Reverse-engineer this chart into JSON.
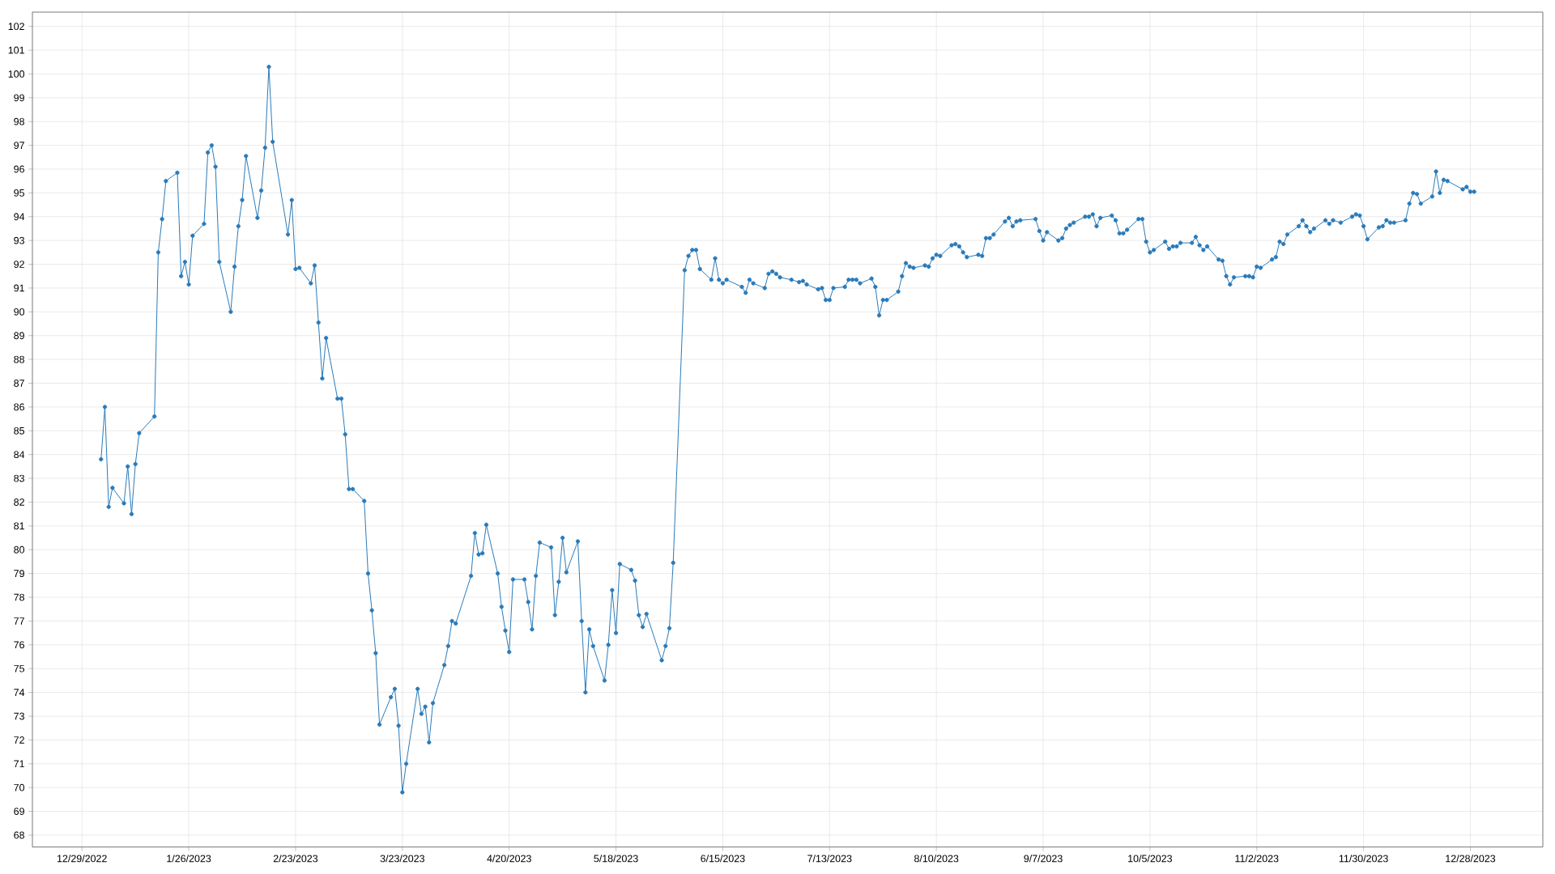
{
  "chart_data": {
    "type": "line",
    "marker": "circle",
    "grid": true,
    "xlim": [
      "2022-12-16",
      "2024-01-16"
    ],
    "ylim": [
      67.5,
      102.6
    ],
    "xticks": [
      {
        "value": "2022-12-29",
        "label": "12/29/2022"
      },
      {
        "value": "2023-01-26",
        "label": "1/26/2023"
      },
      {
        "value": "2023-02-23",
        "label": "2/23/2023"
      },
      {
        "value": "2023-03-23",
        "label": "3/23/2023"
      },
      {
        "value": "2023-04-20",
        "label": "4/20/2023"
      },
      {
        "value": "2023-05-18",
        "label": "5/18/2023"
      },
      {
        "value": "2023-06-15",
        "label": "6/15/2023"
      },
      {
        "value": "2023-07-13",
        "label": "7/13/2023"
      },
      {
        "value": "2023-08-10",
        "label": "8/10/2023"
      },
      {
        "value": "2023-09-07",
        "label": "9/7/2023"
      },
      {
        "value": "2023-10-05",
        "label": "10/5/2023"
      },
      {
        "value": "2023-11-02",
        "label": "11/2/2023"
      },
      {
        "value": "2023-11-30",
        "label": "11/30/2023"
      },
      {
        "value": "2023-12-28",
        "label": "12/28/2023"
      }
    ],
    "yticks": [
      68,
      69,
      70,
      71,
      72,
      73,
      74,
      75,
      76,
      77,
      78,
      79,
      80,
      81,
      82,
      83,
      84,
      85,
      86,
      87,
      88,
      89,
      90,
      91,
      92,
      93,
      94,
      95,
      96,
      97,
      98,
      99,
      100,
      101,
      102
    ],
    "x": [
      "2023-01-03",
      "2023-01-04",
      "2023-01-05",
      "2023-01-06",
      "2023-01-09",
      "2023-01-10",
      "2023-01-11",
      "2023-01-12",
      "2023-01-13",
      "2023-01-17",
      "2023-01-18",
      "2023-01-19",
      "2023-01-20",
      "2023-01-23",
      "2023-01-24",
      "2023-01-25",
      "2023-01-26",
      "2023-01-27",
      "2023-01-30",
      "2023-01-31",
      "2023-02-01",
      "2023-02-02",
      "2023-02-03",
      "2023-02-06",
      "2023-02-07",
      "2023-02-08",
      "2023-02-09",
      "2023-02-10",
      "2023-02-13",
      "2023-02-14",
      "2023-02-15",
      "2023-02-16",
      "2023-02-17",
      "2023-02-21",
      "2023-02-22",
      "2023-02-23",
      "2023-02-24",
      "2023-02-27",
      "2023-02-28",
      "2023-03-01",
      "2023-03-02",
      "2023-03-03",
      "2023-03-06",
      "2023-03-07",
      "2023-03-08",
      "2023-03-09",
      "2023-03-10",
      "2023-03-13",
      "2023-03-14",
      "2023-03-15",
      "2023-03-16",
      "2023-03-17",
      "2023-03-20",
      "2023-03-21",
      "2023-03-22",
      "2023-03-23",
      "2023-03-24",
      "2023-03-27",
      "2023-03-28",
      "2023-03-29",
      "2023-03-30",
      "2023-03-31",
      "2023-04-03",
      "2023-04-04",
      "2023-04-05",
      "2023-04-06",
      "2023-04-10",
      "2023-04-11",
      "2023-04-12",
      "2023-04-13",
      "2023-04-14",
      "2023-04-17",
      "2023-04-18",
      "2023-04-19",
      "2023-04-20",
      "2023-04-21",
      "2023-04-24",
      "2023-04-25",
      "2023-04-26",
      "2023-04-27",
      "2023-04-28",
      "2023-05-01",
      "2023-05-02",
      "2023-05-03",
      "2023-05-04",
      "2023-05-05",
      "2023-05-08",
      "2023-05-09",
      "2023-05-10",
      "2023-05-11",
      "2023-05-12",
      "2023-05-15",
      "2023-05-16",
      "2023-05-17",
      "2023-05-18",
      "2023-05-19",
      "2023-05-22",
      "2023-05-23",
      "2023-05-24",
      "2023-05-25",
      "2023-05-26",
      "2023-05-30",
      "2023-05-31",
      "2023-06-01",
      "2023-06-02",
      "2023-06-05",
      "2023-06-06",
      "2023-06-07",
      "2023-06-08",
      "2023-06-09",
      "2023-06-12",
      "2023-06-13",
      "2023-06-14",
      "2023-06-15",
      "2023-06-16",
      "2023-06-20",
      "2023-06-21",
      "2023-06-22",
      "2023-06-23",
      "2023-06-26",
      "2023-06-27",
      "2023-06-28",
      "2023-06-29",
      "2023-06-30",
      "2023-07-03",
      "2023-07-05",
      "2023-07-06",
      "2023-07-07",
      "2023-07-10",
      "2023-07-11",
      "2023-07-12",
      "2023-07-13",
      "2023-07-14",
      "2023-07-17",
      "2023-07-18",
      "2023-07-19",
      "2023-07-20",
      "2023-07-21",
      "2023-07-24",
      "2023-07-25",
      "2023-07-26",
      "2023-07-27",
      "2023-07-28",
      "2023-07-31",
      "2023-08-01",
      "2023-08-02",
      "2023-08-03",
      "2023-08-04",
      "2023-08-07",
      "2023-08-08",
      "2023-08-09",
      "2023-08-10",
      "2023-08-11",
      "2023-08-14",
      "2023-08-15",
      "2023-08-16",
      "2023-08-17",
      "2023-08-18",
      "2023-08-21",
      "2023-08-22",
      "2023-08-23",
      "2023-08-24",
      "2023-08-25",
      "2023-08-28",
      "2023-08-29",
      "2023-08-30",
      "2023-08-31",
      "2023-09-01",
      "2023-09-05",
      "2023-09-06",
      "2023-09-07",
      "2023-09-08",
      "2023-09-11",
      "2023-09-12",
      "2023-09-13",
      "2023-09-14",
      "2023-09-15",
      "2023-09-18",
      "2023-09-19",
      "2023-09-20",
      "2023-09-21",
      "2023-09-22",
      "2023-09-25",
      "2023-09-26",
      "2023-09-27",
      "2023-09-28",
      "2023-09-29",
      "2023-10-02",
      "2023-10-03",
      "2023-10-04",
      "2023-10-05",
      "2023-10-06",
      "2023-10-09",
      "2023-10-10",
      "2023-10-11",
      "2023-10-12",
      "2023-10-13",
      "2023-10-16",
      "2023-10-17",
      "2023-10-18",
      "2023-10-19",
      "2023-10-20",
      "2023-10-23",
      "2023-10-24",
      "2023-10-25",
      "2023-10-26",
      "2023-10-27",
      "2023-10-30",
      "2023-10-31",
      "2023-11-01",
      "2023-11-02",
      "2023-11-03",
      "2023-11-06",
      "2023-11-07",
      "2023-11-08",
      "2023-11-09",
      "2023-11-10",
      "2023-11-13",
      "2023-11-14",
      "2023-11-15",
      "2023-11-16",
      "2023-11-17",
      "2023-11-20",
      "2023-11-21",
      "2023-11-22",
      "2023-11-24",
      "2023-11-27",
      "2023-11-28",
      "2023-11-29",
      "2023-11-30",
      "2023-12-01",
      "2023-12-04",
      "2023-12-05",
      "2023-12-06",
      "2023-12-07",
      "2023-12-08",
      "2023-12-11",
      "2023-12-12",
      "2023-12-13",
      "2023-12-14",
      "2023-12-15",
      "2023-12-18",
      "2023-12-19",
      "2023-12-20",
      "2023-12-21",
      "2023-12-22",
      "2023-12-26",
      "2023-12-27",
      "2023-12-28",
      "2023-12-29"
    ],
    "series": [
      {
        "color": "#2a7ab9",
        "values": [
          83.8,
          86.0,
          81.8,
          82.6,
          81.95,
          83.5,
          81.5,
          83.6,
          84.9,
          85.6,
          92.5,
          93.9,
          95.5,
          95.85,
          91.5,
          92.1,
          91.15,
          93.2,
          93.7,
          96.7,
          97.0,
          96.1,
          92.1,
          90.0,
          91.9,
          93.6,
          94.7,
          96.55,
          93.95,
          95.1,
          96.9,
          100.3,
          97.15,
          93.25,
          94.7,
          91.8,
          91.85,
          91.2,
          91.95,
          89.55,
          87.2,
          88.9,
          86.35,
          86.35,
          84.85,
          82.55,
          82.55,
          82.05,
          79.0,
          77.45,
          75.65,
          72.65,
          73.8,
          74.15,
          72.6,
          69.8,
          71.0,
          74.15,
          73.1,
          73.4,
          71.9,
          73.55,
          75.15,
          75.95,
          77.0,
          76.9,
          78.9,
          80.7,
          79.8,
          79.85,
          81.05,
          79.0,
          77.6,
          76.6,
          75.7,
          78.75,
          78.75,
          77.8,
          76.65,
          78.9,
          80.3,
          80.1,
          77.25,
          78.65,
          80.5,
          79.05,
          80.35,
          77.0,
          74.0,
          76.65,
          75.95,
          74.5,
          76.0,
          78.3,
          76.5,
          79.4,
          79.15,
          78.7,
          77.25,
          76.75,
          77.3,
          75.35,
          75.95,
          76.7,
          79.45,
          91.75,
          92.35,
          92.6,
          92.6,
          91.8,
          91.35,
          92.25,
          91.35,
          91.2,
          91.35,
          91.05,
          90.8,
          91.35,
          91.2,
          91.0,
          91.6,
          91.7,
          91.6,
          91.45,
          91.35,
          91.25,
          91.3,
          91.15,
          90.95,
          91.0,
          90.5,
          90.5,
          91.0,
          91.05,
          91.35,
          91.35,
          91.35,
          91.2,
          91.4,
          91.05,
          89.85,
          90.5,
          90.5,
          90.85,
          91.5,
          92.05,
          91.9,
          91.85,
          91.95,
          91.9,
          92.25,
          92.4,
          92.35,
          92.8,
          92.85,
          92.75,
          92.5,
          92.3,
          92.4,
          92.35,
          93.1,
          93.1,
          93.25,
          93.8,
          93.95,
          93.6,
          93.8,
          93.85,
          93.9,
          93.4,
          93.0,
          93.35,
          93.0,
          93.1,
          93.5,
          93.65,
          93.75,
          94.0,
          94.0,
          94.1,
          93.6,
          93.95,
          94.05,
          93.85,
          93.3,
          93.3,
          93.45,
          93.9,
          93.9,
          92.95,
          92.5,
          92.6,
          92.95,
          92.65,
          92.75,
          92.75,
          92.9,
          92.9,
          93.15,
          92.8,
          92.6,
          92.75,
          92.2,
          92.15,
          91.5,
          91.15,
          91.45,
          91.5,
          91.5,
          91.45,
          91.9,
          91.85,
          92.2,
          92.3,
          92.95,
          92.85,
          93.25,
          93.6,
          93.85,
          93.6,
          93.35,
          93.5,
          93.85,
          93.7,
          93.85,
          93.75,
          94.0,
          94.1,
          94.05,
          93.6,
          93.05,
          93.55,
          93.6,
          93.85,
          93.75,
          93.75,
          93.85,
          94.55,
          95.0,
          94.95,
          94.55,
          94.85,
          95.9,
          95.0,
          95.55,
          95.5,
          95.15,
          95.25,
          95.05,
          95.05
        ]
      }
    ]
  }
}
